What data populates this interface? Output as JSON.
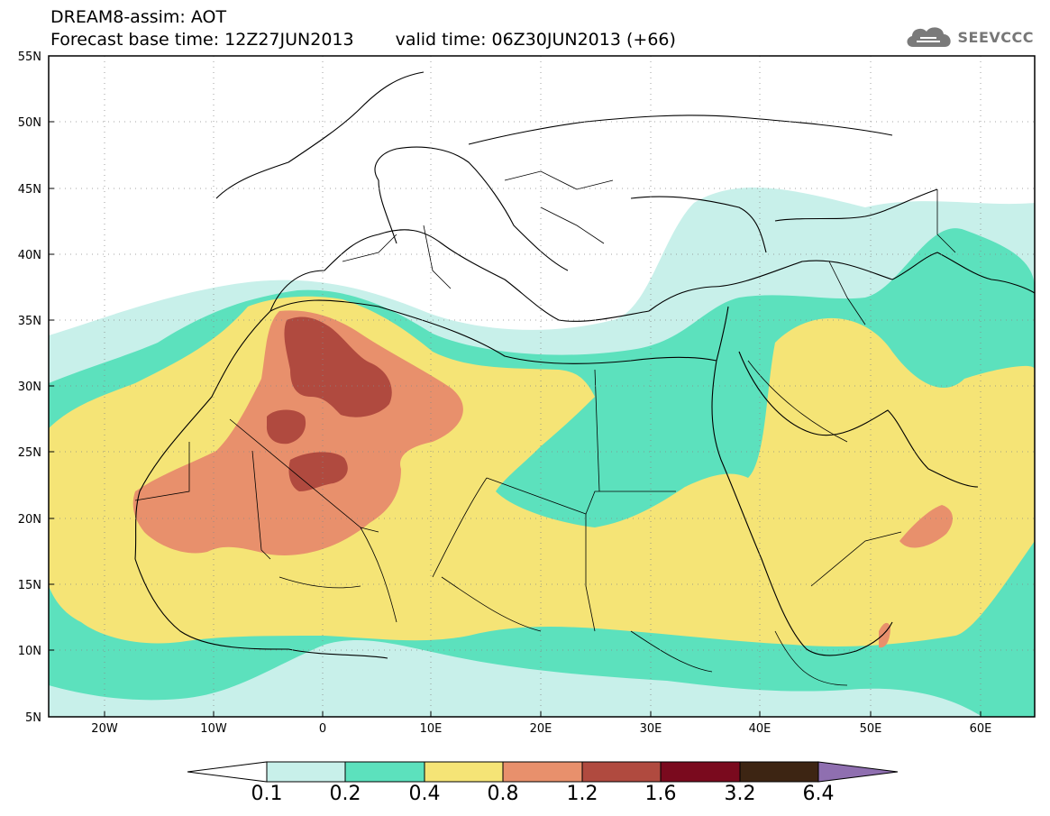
{
  "header": {
    "title_line1": "DREAM8-assim: AOT",
    "base_time_label": "Forecast base time: 12Z27JUN2013",
    "valid_time_label": "valid time: 06Z30JUN2013 (+66)",
    "logo_text": "SEEVCCC",
    "logo_icon": "cloud-icon"
  },
  "map": {
    "lon_range": [
      -25,
      65
    ],
    "lat_range": [
      5,
      55
    ],
    "lat_ticks": [
      "55N",
      "50N",
      "45N",
      "40N",
      "35N",
      "30N",
      "25N",
      "20N",
      "15N",
      "10N",
      "5N"
    ],
    "lon_ticks": [
      "20W",
      "10W",
      "0",
      "10E",
      "20E",
      "30E",
      "40E",
      "50E",
      "60E"
    ],
    "grid": "dotted",
    "field_colors": {
      "0.1-0.2": "#c8f0ea",
      "0.2-0.4": "#5ce1bd",
      "0.4-0.8": "#f5e476",
      "0.8-1.2": "#e8906c",
      "1.2-1.6": "#b04a3f",
      "land_lines": "#000000"
    }
  },
  "colorbar": {
    "labels": [
      "0.1",
      "0.2",
      "0.4",
      "0.8",
      "1.2",
      "1.6",
      "3.2",
      "6.4"
    ],
    "colors": [
      "#ffffff",
      "#c8f0ea",
      "#5ce1bd",
      "#f5e476",
      "#e8906c",
      "#b04a3f",
      "#7a0a1e",
      "#3d2513",
      "#8f6fb0"
    ]
  }
}
